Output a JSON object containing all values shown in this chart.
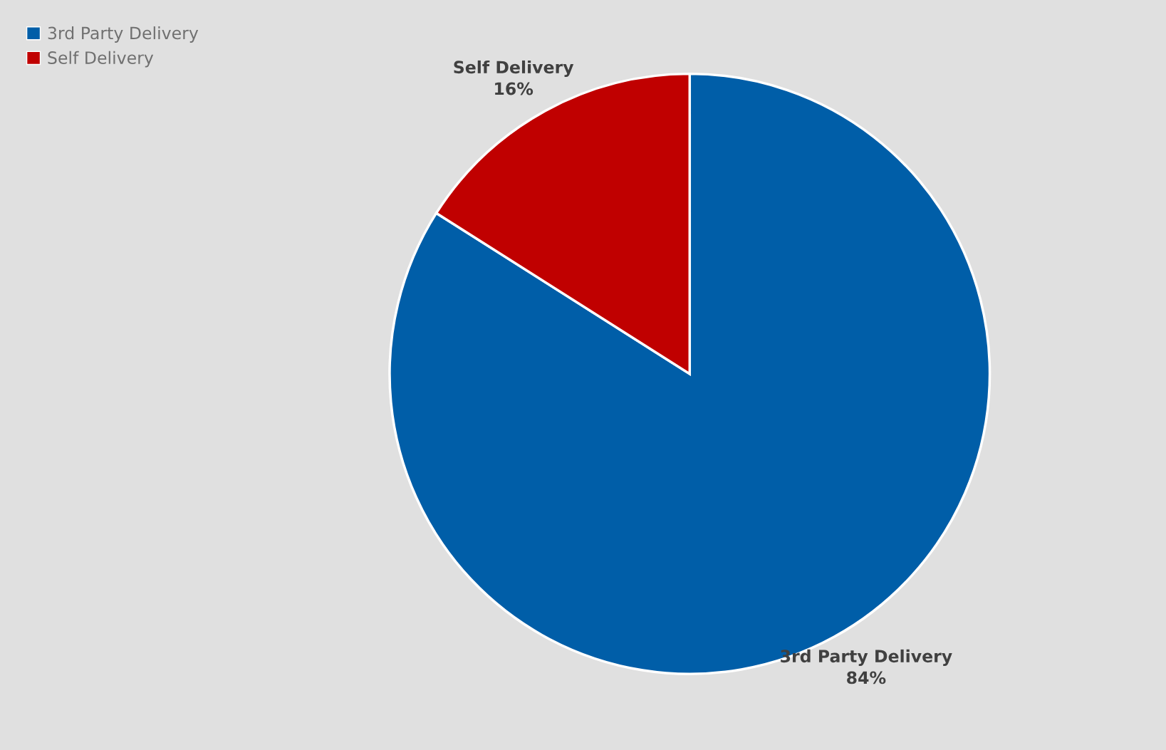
{
  "chart_data": {
    "type": "pie",
    "categories": [
      "3rd Party Delivery",
      "Self Delivery"
    ],
    "values": [
      84,
      16
    ],
    "value_labels": [
      "84%",
      "16%"
    ],
    "colors": [
      "#005ea8",
      "#c00000"
    ],
    "legend": "top left"
  }
}
